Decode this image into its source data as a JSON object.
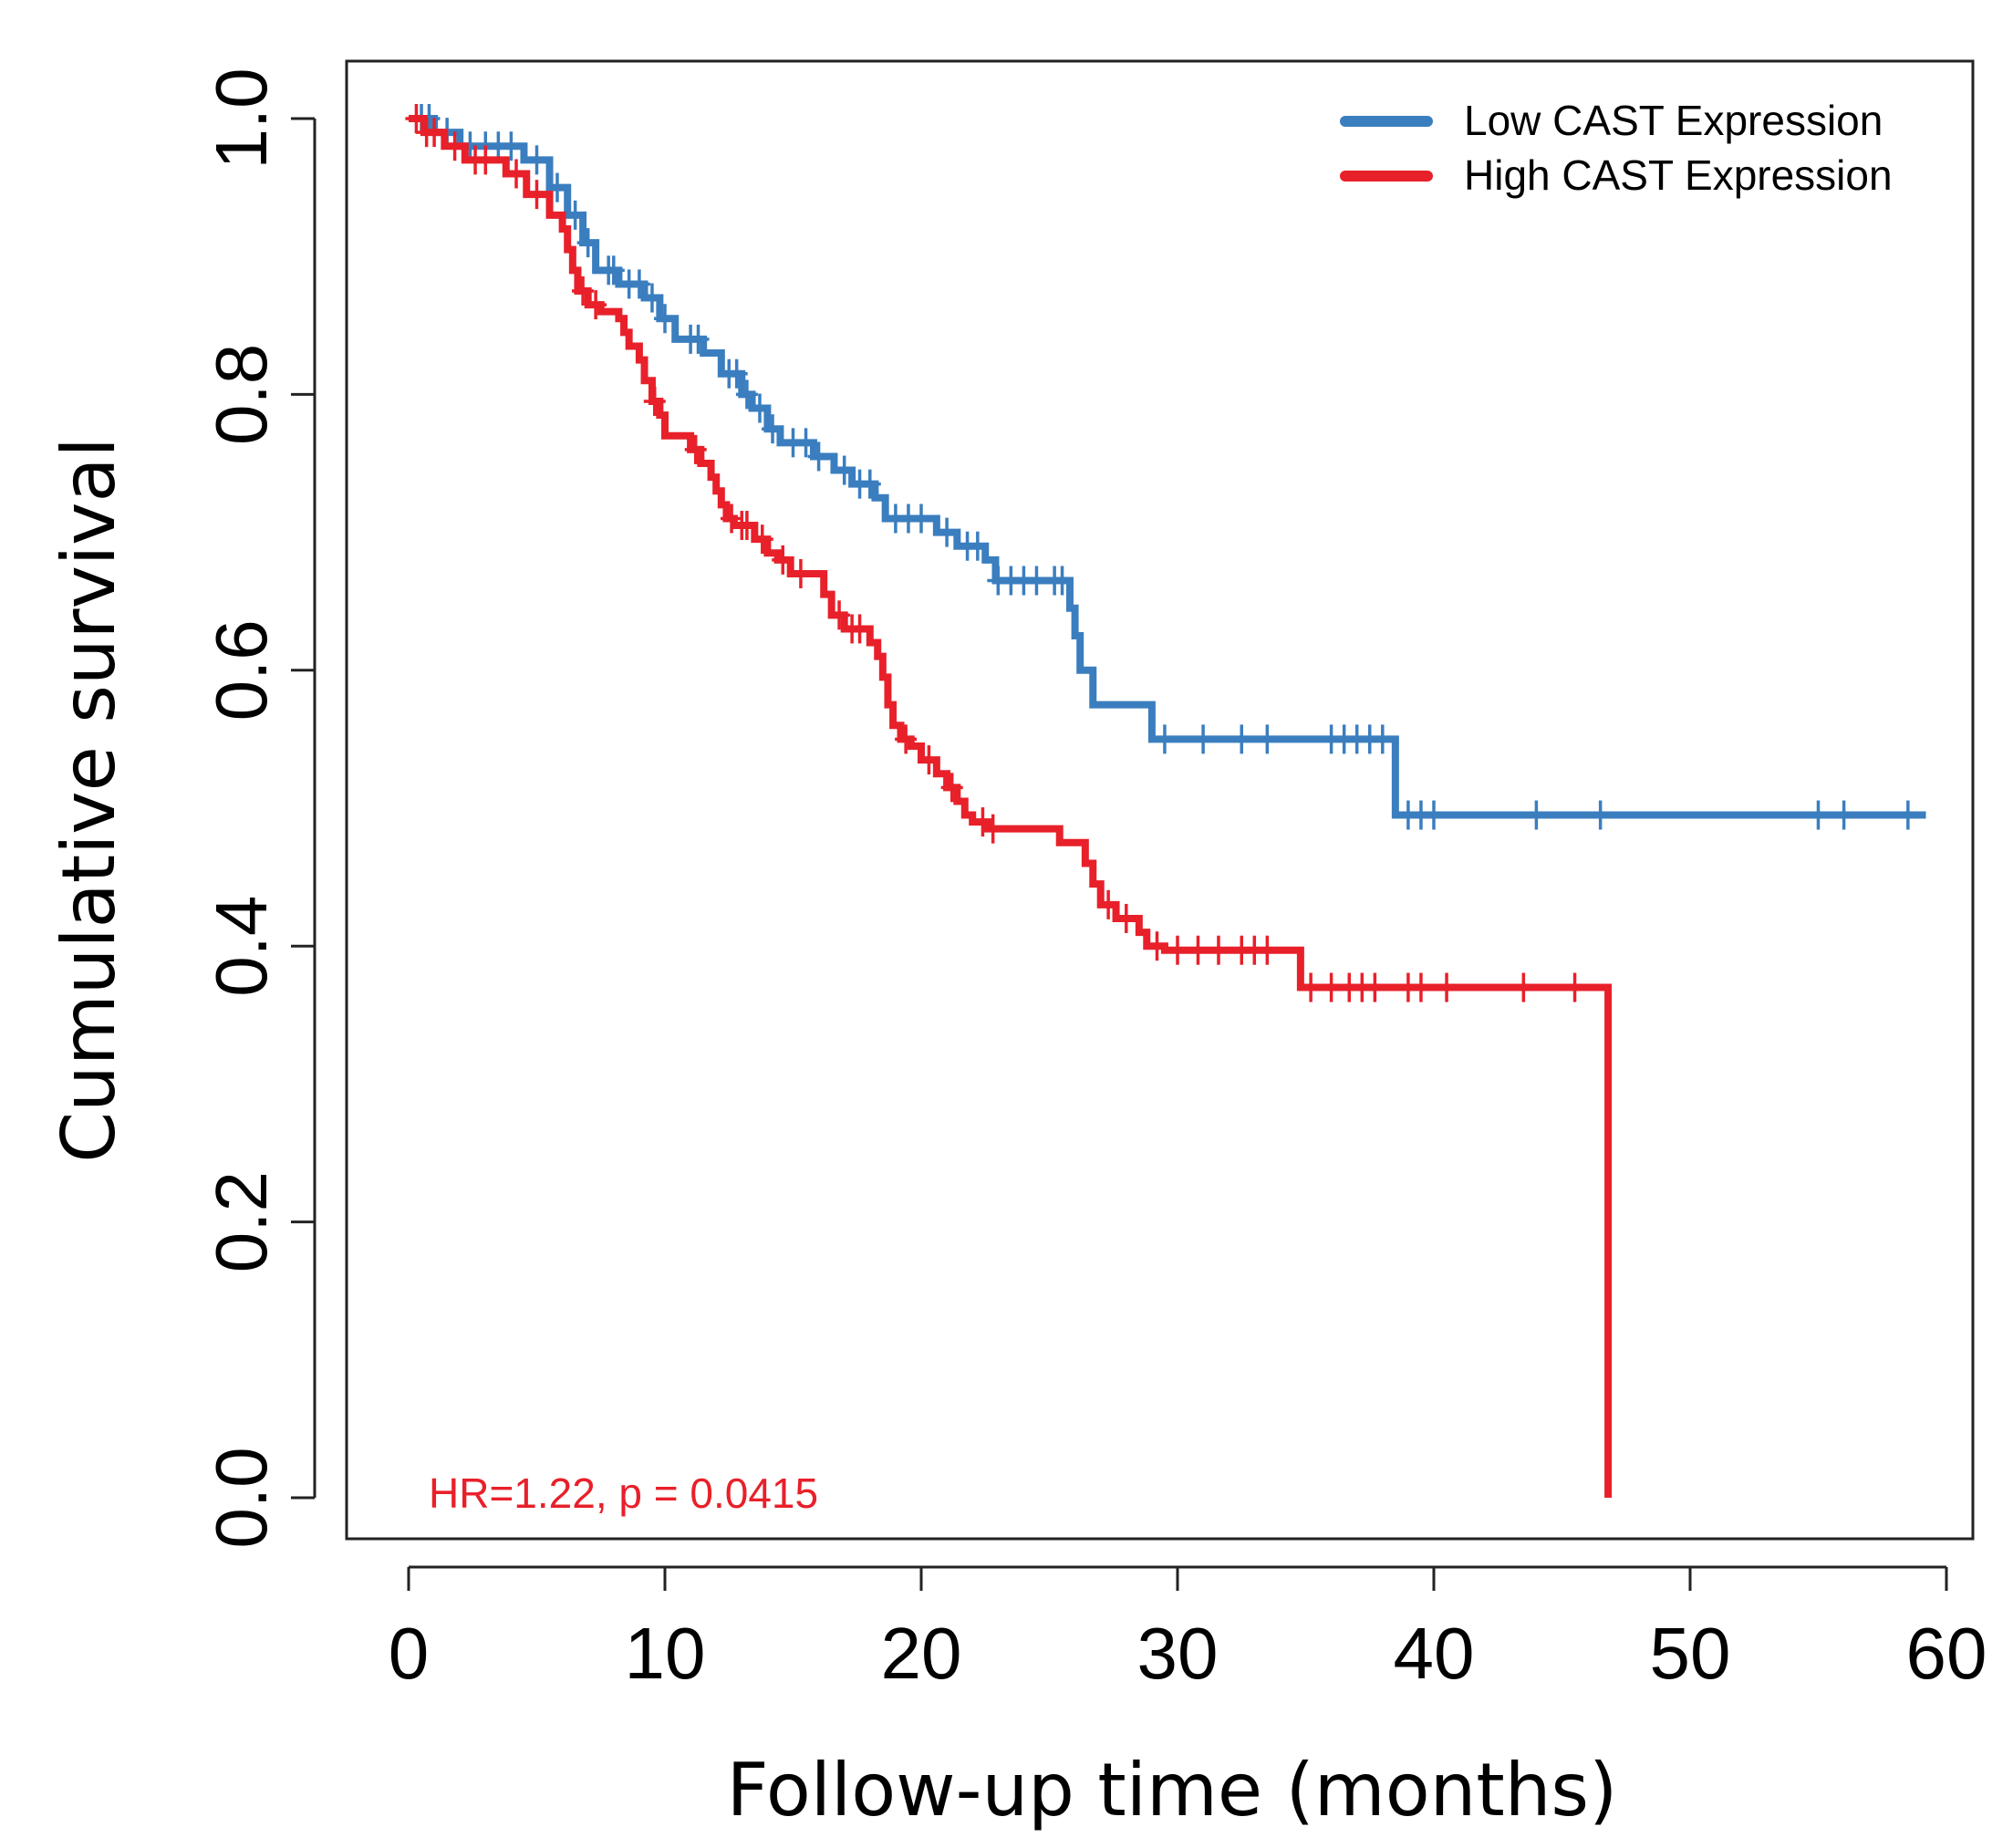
{
  "chart_data": {
    "type": "line",
    "subtype": "kaplan-meier",
    "xlabel": "Follow-up time (months)",
    "ylabel": "Cumulative survival",
    "xlim": [
      0,
      60
    ],
    "ylim": [
      0,
      1
    ],
    "xticks": [
      "0",
      "10",
      "20",
      "30",
      "40",
      "50",
      "60"
    ],
    "yticks": [
      "0.0",
      "0.2",
      "0.4",
      "0.6",
      "0.8",
      "1.0"
    ],
    "grid": false,
    "legend_position": "top-right",
    "annotation": "HR=1.22, p = 0.0415",
    "annotation_color": "#e8202a",
    "series": [
      {
        "name": "Low CAST Expression",
        "color": "#3a7ebf",
        "steps": [
          [
            0,
            1.0
          ],
          [
            1.0,
            0.99
          ],
          [
            2.0,
            0.98
          ],
          [
            4.5,
            0.97
          ],
          [
            5.5,
            0.95
          ],
          [
            6.2,
            0.93
          ],
          [
            6.8,
            0.91
          ],
          [
            7.3,
            0.89
          ],
          [
            8.2,
            0.88
          ],
          [
            9.2,
            0.87
          ],
          [
            9.8,
            0.855
          ],
          [
            10.4,
            0.84
          ],
          [
            11.5,
            0.83
          ],
          [
            12.2,
            0.815
          ],
          [
            13.0,
            0.8
          ],
          [
            13.4,
            0.79
          ],
          [
            14.0,
            0.775
          ],
          [
            14.5,
            0.765
          ],
          [
            15.8,
            0.755
          ],
          [
            16.6,
            0.745
          ],
          [
            17.3,
            0.735
          ],
          [
            18.2,
            0.725
          ],
          [
            18.6,
            0.71
          ],
          [
            20.6,
            0.7
          ],
          [
            21.4,
            0.69
          ],
          [
            22.5,
            0.68
          ],
          [
            22.9,
            0.665
          ],
          [
            25.8,
            0.645
          ],
          [
            26.0,
            0.625
          ],
          [
            26.2,
            0.6
          ],
          [
            26.7,
            0.575
          ],
          [
            29.0,
            0.55
          ],
          [
            38.5,
            0.495
          ]
        ],
        "end_x": 59.2,
        "censor_x": [
          0.5,
          0.8,
          1.5,
          2.4,
          3.0,
          3.5,
          4.0,
          5.0,
          5.8,
          6.5,
          7.0,
          7.8,
          8.0,
          8.6,
          9.0,
          9.5,
          10.0,
          11.0,
          11.3,
          12.5,
          12.8,
          13.2,
          13.7,
          14.2,
          15.0,
          15.5,
          16.0,
          17.0,
          17.6,
          18.0,
          19.0,
          19.5,
          20.0,
          21.0,
          21.8,
          22.2,
          23.0,
          23.5,
          24.0,
          24.5,
          25.2,
          25.5,
          29.5,
          31.0,
          32.5,
          33.5,
          36.0,
          36.5,
          37.0,
          37.5,
          38.0,
          39.0,
          39.5,
          40.0,
          44.0,
          46.5,
          55.0,
          56.0,
          58.5
        ]
      },
      {
        "name": "High CAST Expression",
        "color": "#e8202a",
        "steps": [
          [
            0,
            1.0
          ],
          [
            0.6,
            0.99
          ],
          [
            1.4,
            0.98
          ],
          [
            2.2,
            0.97
          ],
          [
            3.8,
            0.96
          ],
          [
            4.6,
            0.945
          ],
          [
            5.5,
            0.93
          ],
          [
            6.0,
            0.92
          ],
          [
            6.2,
            0.905
          ],
          [
            6.4,
            0.89
          ],
          [
            6.6,
            0.875
          ],
          [
            7.0,
            0.865
          ],
          [
            7.5,
            0.86
          ],
          [
            8.2,
            0.855
          ],
          [
            8.4,
            0.845
          ],
          [
            8.6,
            0.835
          ],
          [
            9.0,
            0.825
          ],
          [
            9.2,
            0.81
          ],
          [
            9.5,
            0.795
          ],
          [
            9.8,
            0.785
          ],
          [
            10.0,
            0.77
          ],
          [
            11.0,
            0.76
          ],
          [
            11.4,
            0.75
          ],
          [
            11.8,
            0.74
          ],
          [
            12.0,
            0.73
          ],
          [
            12.2,
            0.72
          ],
          [
            12.4,
            0.71
          ],
          [
            12.7,
            0.705
          ],
          [
            13.5,
            0.695
          ],
          [
            14.0,
            0.685
          ],
          [
            14.4,
            0.68
          ],
          [
            14.9,
            0.67
          ],
          [
            15.8,
            0.67
          ],
          [
            16.2,
            0.655
          ],
          [
            16.5,
            0.64
          ],
          [
            17.0,
            0.63
          ],
          [
            18.0,
            0.62
          ],
          [
            18.3,
            0.61
          ],
          [
            18.5,
            0.595
          ],
          [
            18.7,
            0.575
          ],
          [
            18.9,
            0.56
          ],
          [
            19.2,
            0.55
          ],
          [
            19.6,
            0.545
          ],
          [
            20.0,
            0.535
          ],
          [
            20.6,
            0.525
          ],
          [
            21.0,
            0.515
          ],
          [
            21.4,
            0.505
          ],
          [
            21.7,
            0.495
          ],
          [
            22.0,
            0.49
          ],
          [
            22.6,
            0.485
          ],
          [
            25.4,
            0.475
          ],
          [
            26.4,
            0.46
          ],
          [
            26.7,
            0.445
          ],
          [
            27.0,
            0.43
          ],
          [
            27.6,
            0.42
          ],
          [
            28.5,
            0.41
          ],
          [
            28.8,
            0.4
          ],
          [
            29.5,
            0.397
          ],
          [
            34.8,
            0.37
          ],
          [
            46.8,
            0.0
          ]
        ],
        "end_x": 46.8,
        "censor_x": [
          0.3,
          0.7,
          1.0,
          1.8,
          2.6,
          3.0,
          4.2,
          5.0,
          6.8,
          7.3,
          9.6,
          11.2,
          12.6,
          13.0,
          13.2,
          13.8,
          14.6,
          15.3,
          16.8,
          17.3,
          17.6,
          19.4,
          20.3,
          21.2,
          22.4,
          22.8,
          27.3,
          28.0,
          29.2,
          30.0,
          30.8,
          31.6,
          32.5,
          33.0,
          33.5,
          35.2,
          36.0,
          36.7,
          37.2,
          37.7,
          39.0,
          39.5,
          40.5,
          43.5,
          45.5
        ]
      }
    ]
  }
}
